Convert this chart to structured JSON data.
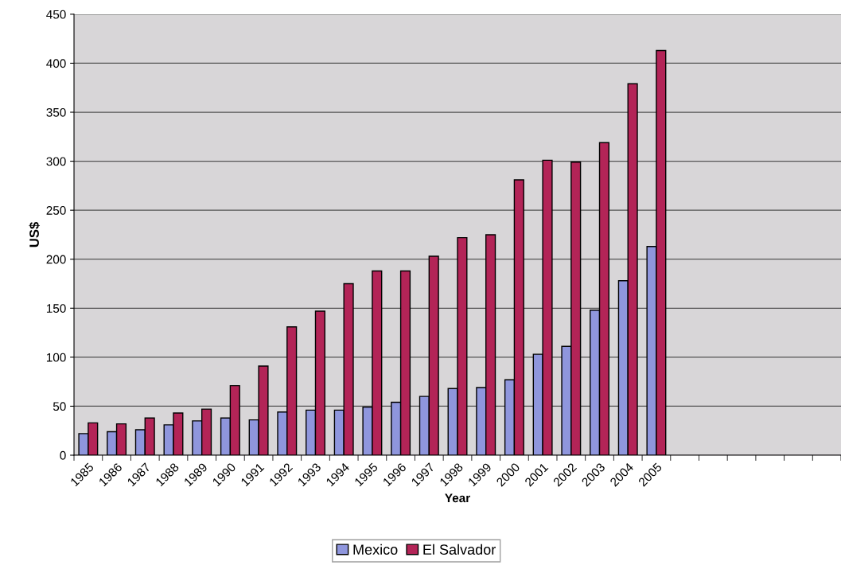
{
  "chart_data": {
    "type": "bar",
    "xlabel": "Year",
    "ylabel": "US$",
    "categories": [
      "1985",
      "1986",
      "1987",
      "1988",
      "1989",
      "1990",
      "1991",
      "1992",
      "1993",
      "1994",
      "1995",
      "1996",
      "1997",
      "1998",
      "1999",
      "2000",
      "2001",
      "2002",
      "2003",
      "2004",
      "2005",
      null,
      null,
      null,
      null,
      null,
      null
    ],
    "series": [
      {
        "name": "Mexico",
        "color": "#8f96dd",
        "values": [
          22,
          24,
          26,
          31,
          35,
          38,
          36,
          44,
          46,
          46,
          49,
          54,
          60,
          68,
          69,
          77,
          103,
          111,
          148,
          178,
          213,
          null,
          null,
          null,
          null,
          null,
          null
        ]
      },
      {
        "name": "El Salvador",
        "color": "#b32457",
        "values": [
          33,
          32,
          38,
          43,
          47,
          71,
          91,
          131,
          147,
          175,
          188,
          188,
          203,
          222,
          225,
          281,
          301,
          299,
          319,
          379,
          413,
          null,
          null,
          null,
          null,
          null,
          null
        ]
      }
    ],
    "ylim": [
      0,
      450
    ],
    "yticks": [
      0,
      50,
      100,
      150,
      200,
      250,
      300,
      350,
      400,
      450
    ],
    "grid": "y",
    "legend": "bottom"
  }
}
